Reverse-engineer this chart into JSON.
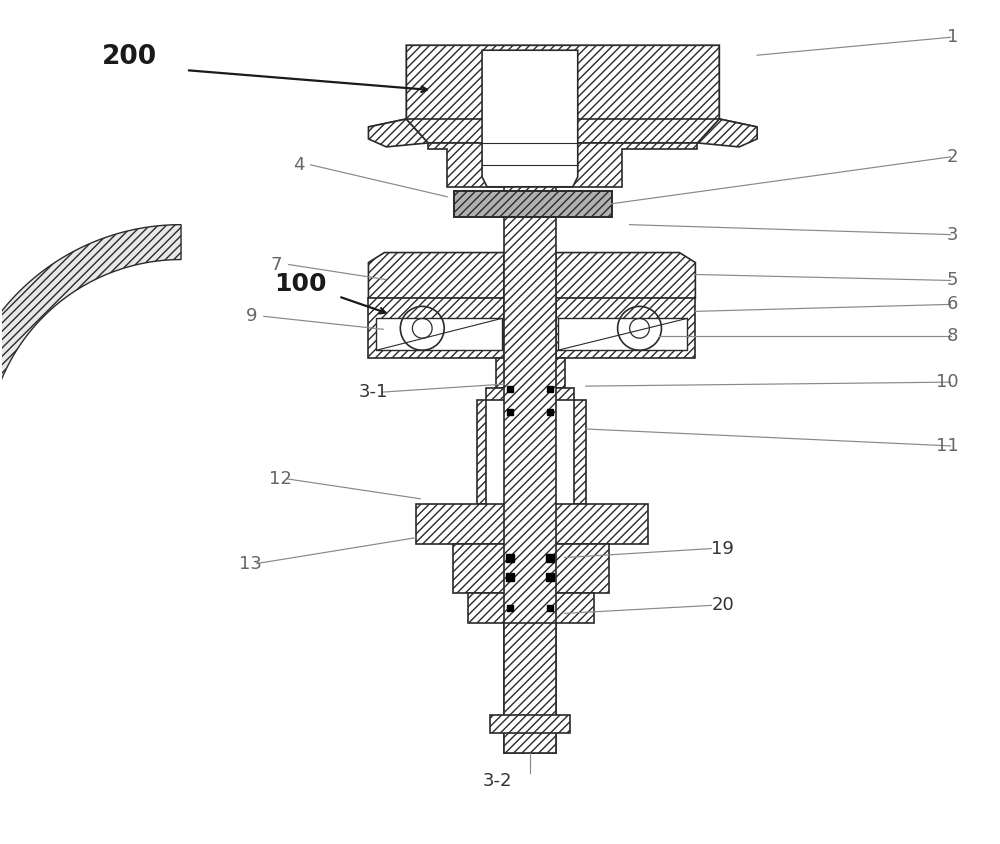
{
  "background_color": "#ffffff",
  "line_color": "#2a2a2a",
  "figsize": [
    10.0,
    8.44
  ],
  "dpi": 100,
  "hatch_fill": "////",
  "hatch_dense": "////",
  "gray_fill": "#c0c0c0",
  "white_fill": "#ffffff",
  "ann_color": "#777777",
  "bold_ann_color": "#222222"
}
